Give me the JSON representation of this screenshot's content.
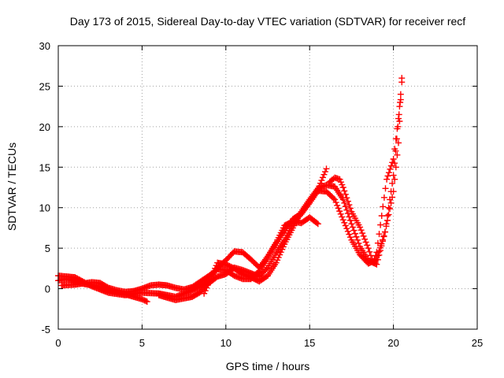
{
  "chart_data": {
    "type": "scatter",
    "title": "Day 173 of 2015, Sidereal Day-to-day VTEC variation (SDTVAR) for receiver recf",
    "xlabel": "GPS time / hours",
    "ylabel": "SDTVAR / TECUs",
    "xlim": [
      0,
      25
    ],
    "ylim": [
      -5,
      30
    ],
    "xticks": [
      0,
      5,
      10,
      15,
      20,
      25
    ],
    "yticks": [
      -5,
      0,
      5,
      10,
      15,
      20,
      25,
      30
    ],
    "grid": true,
    "marker": "+",
    "color": "#ff0000",
    "series": [
      {
        "name": "s1",
        "points": [
          [
            0.0,
            1.0
          ],
          [
            0.5,
            1.2
          ],
          [
            1.0,
            0.9
          ],
          [
            1.5,
            0.6
          ],
          [
            2.0,
            0.4
          ],
          [
            2.5,
            0.2
          ],
          [
            3.0,
            -0.2
          ],
          [
            3.5,
            -0.5
          ],
          [
            4.0,
            -0.7
          ],
          [
            4.5,
            -1.0
          ],
          [
            5.0,
            -1.3
          ],
          [
            5.3,
            -1.6
          ]
        ]
      },
      {
        "name": "s2",
        "points": [
          [
            0.2,
            0.4
          ],
          [
            1.0,
            0.5
          ],
          [
            2.0,
            0.8
          ],
          [
            2.5,
            0.7
          ],
          [
            3.0,
            0.1
          ],
          [
            3.5,
            -0.2
          ],
          [
            4.0,
            -0.4
          ],
          [
            4.5,
            -0.3
          ],
          [
            5.0,
            0.0
          ],
          [
            5.5,
            0.4
          ],
          [
            6.0,
            0.5
          ],
          [
            6.5,
            0.4
          ],
          [
            7.0,
            0.1
          ],
          [
            7.5,
            -0.1
          ],
          [
            8.0,
            0.2
          ],
          [
            8.5,
            0.9
          ],
          [
            9.0,
            1.6
          ],
          [
            9.5,
            2.4
          ],
          [
            10.0,
            2.3
          ],
          [
            10.5,
            1.6
          ],
          [
            11.0,
            1.2
          ],
          [
            11.5,
            1.2
          ],
          [
            12.0,
            2.2
          ],
          [
            12.5,
            3.8
          ],
          [
            13.0,
            5.6
          ],
          [
            13.5,
            7.2
          ],
          [
            14.0,
            8.6
          ],
          [
            14.5,
            9.3
          ],
          [
            15.0,
            10.6
          ],
          [
            15.5,
            12.1
          ],
          [
            16.0,
            12.0
          ],
          [
            16.5,
            11.0
          ],
          [
            17.0,
            8.5
          ],
          [
            17.5,
            6.0
          ],
          [
            18.0,
            4.2
          ],
          [
            18.5,
            3.1
          ],
          [
            19.0,
            3.6
          ],
          [
            19.5,
            7.0
          ],
          [
            20.0,
            12.0
          ],
          [
            20.3,
            18.0
          ],
          [
            20.5,
            26.0
          ]
        ]
      },
      {
        "name": "s3",
        "points": [
          [
            0.0,
            1.6
          ],
          [
            0.5,
            1.5
          ],
          [
            1.0,
            1.4
          ],
          [
            2.0,
            0.3
          ],
          [
            3.0,
            -0.5
          ],
          [
            4.0,
            -0.8
          ],
          [
            5.0,
            -0.5
          ],
          [
            6.0,
            -0.6
          ],
          [
            7.0,
            -1.0
          ],
          [
            7.5,
            -0.6
          ],
          [
            8.0,
            -0.2
          ],
          [
            8.5,
            0.3
          ],
          [
            9.0,
            1.0
          ],
          [
            9.5,
            2.6
          ],
          [
            10.0,
            3.5
          ],
          [
            10.5,
            4.6
          ],
          [
            11.0,
            4.5
          ],
          [
            11.5,
            3.6
          ],
          [
            12.0,
            2.6
          ],
          [
            12.5,
            4.0
          ],
          [
            13.0,
            5.7
          ],
          [
            13.5,
            7.8
          ],
          [
            14.0,
            8.3
          ],
          [
            14.5,
            8.1
          ],
          [
            15.0,
            8.8
          ],
          [
            15.5,
            8.0
          ]
        ]
      },
      {
        "name": "s4",
        "points": [
          [
            6.0,
            -0.8
          ],
          [
            7.0,
            -1.4
          ],
          [
            8.0,
            -1.0
          ],
          [
            8.5,
            -0.4
          ],
          [
            9.0,
            0.7
          ],
          [
            9.5,
            1.5
          ],
          [
            10.0,
            1.8
          ],
          [
            10.5,
            2.6
          ],
          [
            11.0,
            2.3
          ],
          [
            11.5,
            1.9
          ],
          [
            12.0,
            1.5
          ],
          [
            12.5,
            2.6
          ],
          [
            13.0,
            4.4
          ],
          [
            13.5,
            6.0
          ],
          [
            14.0,
            8.0
          ],
          [
            14.5,
            9.2
          ],
          [
            15.0,
            10.6
          ],
          [
            15.5,
            12.3
          ],
          [
            16.0,
            14.8
          ]
        ]
      },
      {
        "name": "s5",
        "points": [
          [
            8.7,
            -0.6
          ],
          [
            9.0,
            0.8
          ],
          [
            9.5,
            3.2
          ],
          [
            10.0,
            3.0
          ],
          [
            10.5,
            2.5
          ],
          [
            11.0,
            1.8
          ],
          [
            11.5,
            1.4
          ],
          [
            12.0,
            0.9
          ],
          [
            12.5,
            1.6
          ],
          [
            13.0,
            3.2
          ],
          [
            13.5,
            5.5
          ],
          [
            14.0,
            7.5
          ],
          [
            14.5,
            9.5
          ],
          [
            15.0,
            11.0
          ],
          [
            15.5,
            12.4
          ],
          [
            16.0,
            12.8
          ],
          [
            16.5,
            12.6
          ],
          [
            17.0,
            11.0
          ],
          [
            17.5,
            8.0
          ],
          [
            18.0,
            5.2
          ],
          [
            18.5,
            3.5
          ],
          [
            19.0,
            3.0
          ],
          [
            19.5,
            7.0
          ],
          [
            20.0,
            14.0
          ],
          [
            20.4,
            23.0
          ]
        ]
      },
      {
        "name": "s6",
        "points": [
          [
            16.2,
            13.2
          ],
          [
            16.5,
            13.7
          ],
          [
            16.8,
            13.5
          ],
          [
            17.0,
            12.5
          ],
          [
            17.5,
            9.5
          ],
          [
            18.0,
            7.6
          ],
          [
            18.5,
            5.0
          ],
          [
            18.8,
            3.2
          ],
          [
            19.0,
            4.5
          ],
          [
            19.3,
            9.0
          ],
          [
            19.6,
            13.5
          ],
          [
            20.0,
            16.0
          ],
          [
            20.3,
            21.0
          ],
          [
            20.5,
            25.5
          ]
        ]
      }
    ]
  }
}
